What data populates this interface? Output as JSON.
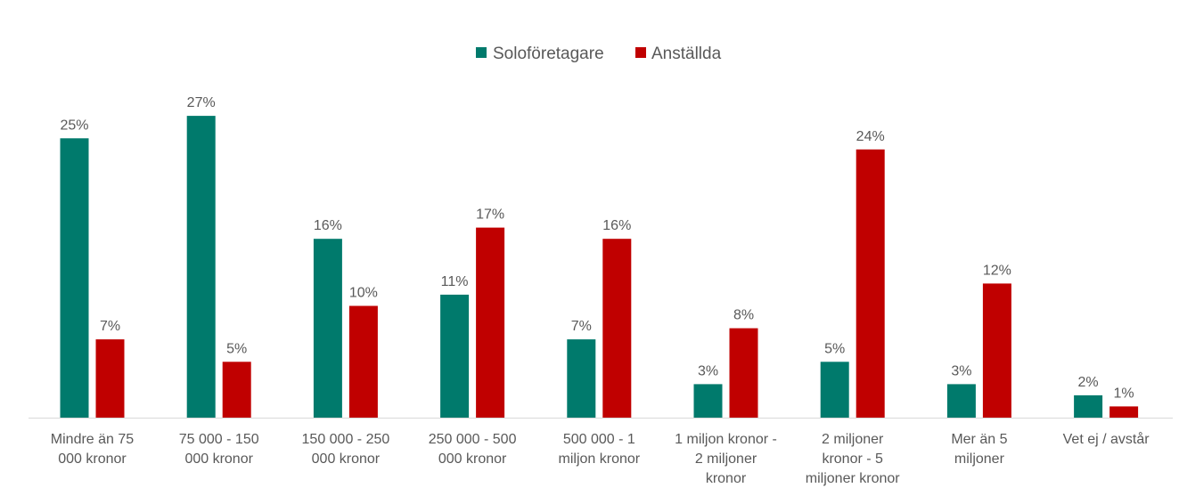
{
  "chart_data": {
    "type": "bar",
    "categories": [
      [
        "Mindre än 75",
        "000 kronor"
      ],
      [
        "75 000 - 150",
        "000 kronor"
      ],
      [
        "150 000 - 250",
        "000 kronor"
      ],
      [
        "250 000 - 500",
        "000 kronor"
      ],
      [
        "500 000 - 1",
        "miljon kronor"
      ],
      [
        "1 miljon kronor -",
        "2 miljoner",
        "kronor"
      ],
      [
        "2 miljoner",
        "kronor - 5",
        "miljoner kronor"
      ],
      [
        "Mer än 5",
        "miljoner"
      ],
      [
        "Vet ej / avstår"
      ]
    ],
    "series": [
      {
        "name": "Soloföretagare",
        "color": "#007A6C",
        "values": [
          25,
          27,
          16,
          11,
          7,
          3,
          5,
          3,
          2
        ],
        "labels": [
          "25%",
          "27%",
          "16%",
          "11%",
          "7%",
          "3%",
          "5%",
          "3%",
          "2%"
        ]
      },
      {
        "name": "Anställda",
        "color": "#C00000",
        "values": [
          7,
          5,
          10,
          17,
          16,
          8,
          24,
          12,
          1
        ],
        "labels": [
          "7%",
          "5%",
          "10%",
          "17%",
          "16%",
          "8%",
          "24%",
          "12%",
          "1%"
        ]
      }
    ],
    "ylim": [
      0,
      27
    ],
    "grid": false,
    "legend_position": "top-center",
    "title": "",
    "xlabel": "",
    "ylabel": ""
  }
}
